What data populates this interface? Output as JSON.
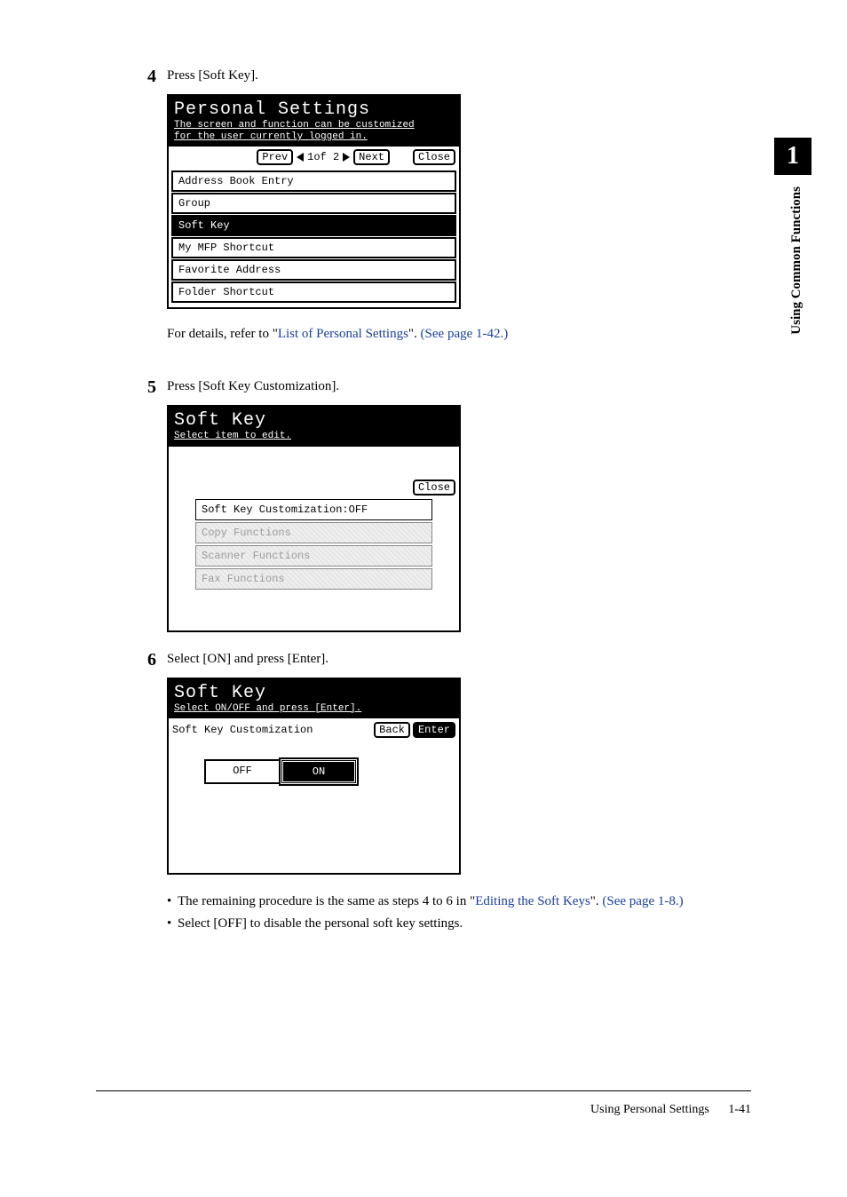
{
  "chapter_number": "1",
  "side_label": "Using Common Functions",
  "steps": {
    "s4": {
      "num": "4",
      "text": "Press [Soft Key]."
    },
    "s5": {
      "num": "5",
      "text": "Press [Soft Key Customization]."
    },
    "s6": {
      "num": "6",
      "text": "Select [ON] and press [Enter]."
    }
  },
  "panel1": {
    "title": "Personal Settings",
    "subtitle_l1": "The screen and function can be customized",
    "subtitle_l2": "for the user currently logged in.",
    "prev": "Prev",
    "pager": "1of  2",
    "next": "Next",
    "close": "Close",
    "items": [
      "Address Book Entry",
      "Group",
      "Soft Key",
      "My MFP Shortcut",
      "Favorite Address",
      "Folder Shortcut"
    ],
    "selected_index": 2
  },
  "detail": {
    "prefix": "For details, refer to \"",
    "link1": "List of Personal Settings",
    "mid": "\". ",
    "link2": "(See page 1-42.)"
  },
  "panel2": {
    "title": "Soft Key",
    "subtitle": "Select item to edit.",
    "close": "Close",
    "items": [
      {
        "label": "Soft Key Customization:OFF",
        "disabled": false
      },
      {
        "label": "Copy Functions",
        "disabled": true
      },
      {
        "label": "Scanner Functions",
        "disabled": true
      },
      {
        "label": "Fax Functions",
        "disabled": true
      }
    ]
  },
  "panel3": {
    "title": "Soft Key",
    "subtitle": "Select ON/OFF and press [Enter].",
    "label": "Soft Key Customization",
    "back": "Back",
    "enter": "Enter",
    "off": "OFF",
    "on": "ON"
  },
  "bullets": {
    "b1_pre": "The remaining procedure is the same as steps 4 to 6 in \"",
    "b1_link1": "Editing the Soft Keys",
    "b1_mid": "\". ",
    "b1_link2": "(See page 1-8.)",
    "b2": "Select [OFF] to disable the personal soft key settings."
  },
  "footer": {
    "text": "Using Personal Settings",
    "page": "1-41"
  }
}
